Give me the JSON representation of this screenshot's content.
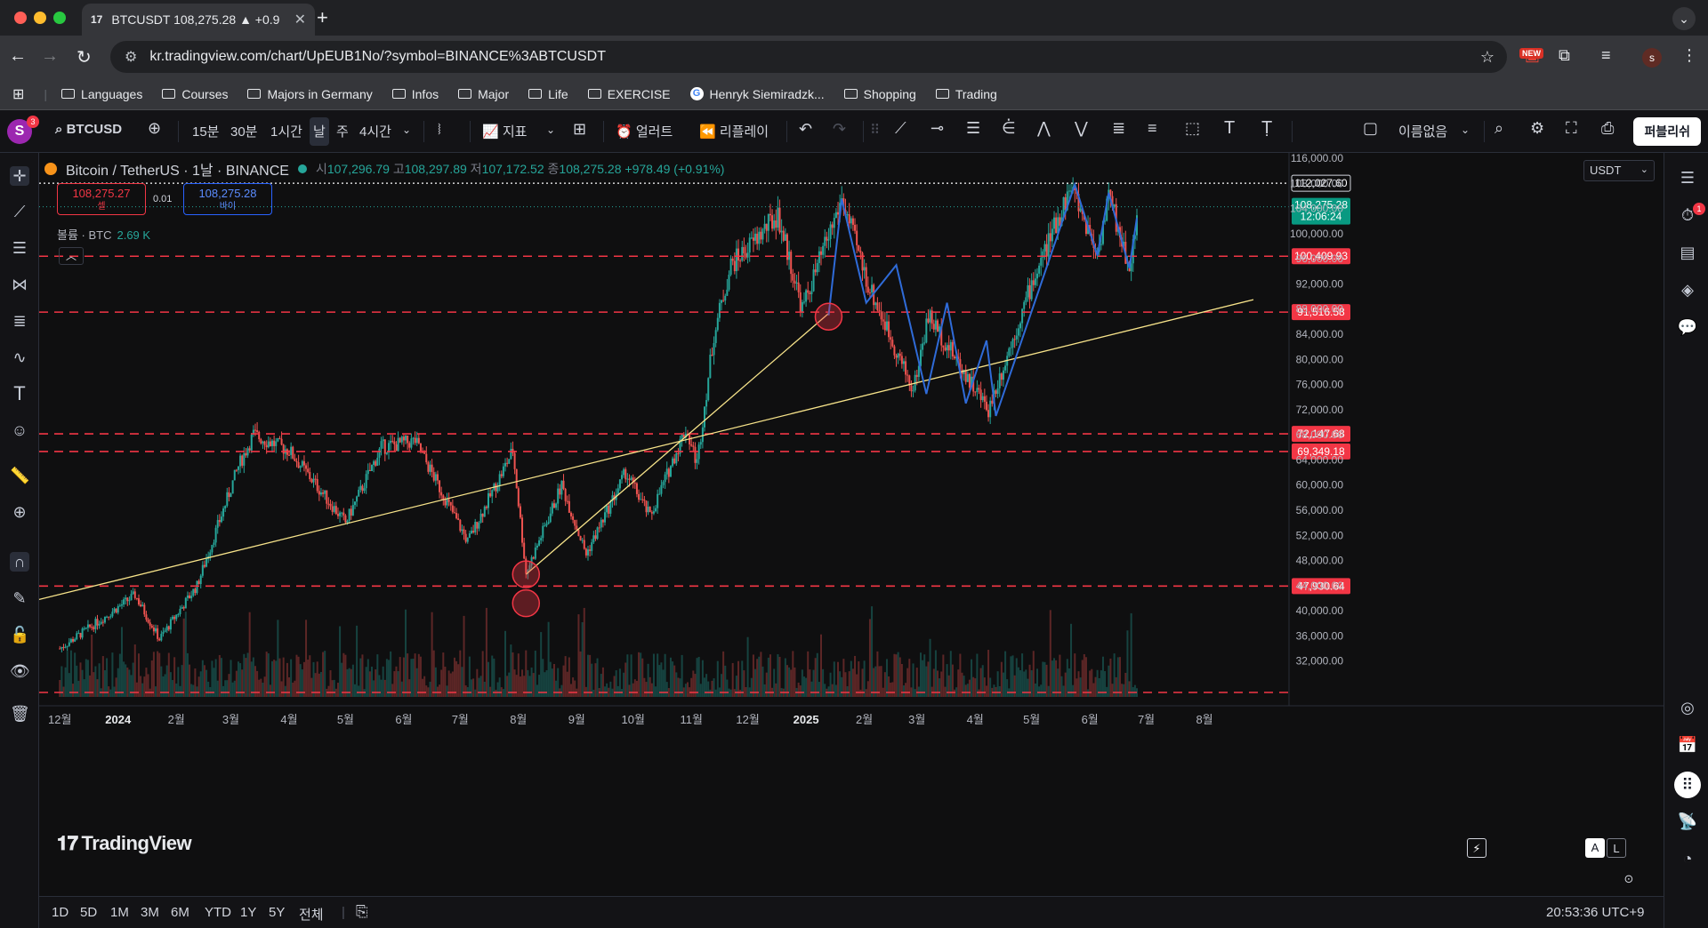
{
  "browser": {
    "tab_title": "BTCUSDT 108,275.28 ▲ +0.9",
    "tab_icon": "17",
    "url": "kr.tradingview.com/chart/UpEUB1No/?symbol=BINANCE%3ABTCUSDT",
    "new_badge": "NEW",
    "profile_initial": "s",
    "bookmarks": [
      "Languages",
      "Courses",
      "Majors in Germany",
      "Infos",
      "Major",
      "Life",
      "EXERCISE",
      "Henryk Siemiradzk...",
      "Shopping",
      "Trading"
    ]
  },
  "toolbar": {
    "avatar": "S",
    "avatar_badge": "3",
    "symbol": "BTCUSD",
    "intervals": [
      "15분",
      "30분",
      "1시간",
      "날",
      "주",
      "4시간"
    ],
    "indicators": "지표",
    "alert": "얼러트",
    "replay": "리플레이",
    "layout_name": "이름없음",
    "publish": "퍼블리쉬"
  },
  "chart": {
    "title": "Bitcoin / TetherUS · 1날 · BINANCE",
    "ohlc": {
      "o_label": "시",
      "o": "107,296.79",
      "h_label": "고",
      "h": "108,297.89",
      "l_label": "저",
      "l": "107,172.52",
      "c_label": "종",
      "c": "108,275.28",
      "change": "+978.49 (+0.91%)"
    },
    "sell_price": "108,275.27",
    "sell_label": "셀",
    "buy_price": "108,275.28",
    "buy_label": "바이",
    "spread": "0.01",
    "volume_label": "볼륨 · BTC",
    "volume_value": "2.69 K",
    "currency": "USDT",
    "watermark": "TradingView",
    "alert_badge": "1",
    "price_axis": [
      "116,000.00",
      "108,000.00",
      "104,000.00",
      "100,000.00",
      "96,000.00",
      "92,000.00",
      "88,000.00",
      "84,000.00",
      "80,000.00",
      "76,000.00",
      "72,000.00",
      "68,000.00",
      "64,000.00",
      "60,000.00",
      "56,000.00",
      "52,000.00",
      "48,000.00",
      "44,000.00",
      "40,000.00",
      "36,000.00",
      "32,000.00"
    ],
    "time_axis": [
      "12월",
      "2024",
      "2월",
      "3월",
      "4월",
      "5월",
      "6월",
      "7월",
      "8월",
      "9월",
      "10월",
      "11월",
      "12월",
      "2025",
      "2월",
      "3월",
      "4월",
      "5월",
      "6월",
      "7월",
      "8월"
    ],
    "level_labels": [
      {
        "text": "112,027.60",
        "kind": "dotted"
      },
      {
        "text": "100,409.93",
        "kind": "red"
      },
      {
        "text": "91,516.58",
        "kind": "red"
      },
      {
        "text": "72,147.68",
        "kind": "red"
      },
      {
        "text": "69,349.18",
        "kind": "red"
      },
      {
        "text": "47,930.64",
        "kind": "red"
      }
    ],
    "current_price": "108,275.28",
    "countdown": "12:06:24",
    "scale_a": "A",
    "scale_l": "L"
  },
  "chart_data": {
    "type": "candlestick",
    "title": "Bitcoin / TetherUS · 1날 · BINANCE",
    "interval": "1D",
    "y_axis": {
      "min": 32000,
      "max": 116000,
      "scale": "linear",
      "unit": "USDT"
    },
    "x_axis": {
      "start": "2023-12",
      "end": "2025-08"
    },
    "close_path": [
      {
        "date": "2023-12-01",
        "close": 38000
      },
      {
        "date": "2023-12-20",
        "close": 42000
      },
      {
        "date": "2024-01-10",
        "close": 46500
      },
      {
        "date": "2024-01-23",
        "close": 39500
      },
      {
        "date": "2024-02-12",
        "close": 48000
      },
      {
        "date": "2024-03-05",
        "close": 67000
      },
      {
        "date": "2024-03-13",
        "close": 72000
      },
      {
        "date": "2024-04-01",
        "close": 69500
      },
      {
        "date": "2024-04-18",
        "close": 63000
      },
      {
        "date": "2024-05-01",
        "close": 58000
      },
      {
        "date": "2024-05-20",
        "close": 70000
      },
      {
        "date": "2024-06-07",
        "close": 71000
      },
      {
        "date": "2024-07-05",
        "close": 55000
      },
      {
        "date": "2024-07-29",
        "close": 69500
      },
      {
        "date": "2024-08-05",
        "close": 50000
      },
      {
        "date": "2024-08-24",
        "close": 64000
      },
      {
        "date": "2024-09-06",
        "close": 53000
      },
      {
        "date": "2024-09-27",
        "close": 66000
      },
      {
        "date": "2024-10-10",
        "close": 59000
      },
      {
        "date": "2024-10-29",
        "close": 73000
      },
      {
        "date": "2024-11-04",
        "close": 67500
      },
      {
        "date": "2024-11-13",
        "close": 88000
      },
      {
        "date": "2024-11-22",
        "close": 99000
      },
      {
        "date": "2024-12-05",
        "close": 103000
      },
      {
        "date": "2024-12-17",
        "close": 107000
      },
      {
        "date": "2024-12-30",
        "close": 92000
      },
      {
        "date": "2025-01-20",
        "close": 109500
      },
      {
        "date": "2025-02-03",
        "close": 96000
      },
      {
        "date": "2025-02-27",
        "close": 79000
      },
      {
        "date": "2025-03-07",
        "close": 91000
      },
      {
        "date": "2025-04-08",
        "close": 76000
      },
      {
        "date": "2025-05-01",
        "close": 96000
      },
      {
        "date": "2025-05-22",
        "close": 111500
      },
      {
        "date": "2025-06-05",
        "close": 101000
      },
      {
        "date": "2025-06-11",
        "close": 110000
      },
      {
        "date": "2025-06-22",
        "close": 98500
      },
      {
        "date": "2025-06-27",
        "close": 108275.28
      }
    ],
    "horizontal_levels": [
      112027.6,
      100409.93,
      91516.58,
      72147.68,
      69349.18,
      47930.64
    ],
    "volume_label": "볼륨 · BTC",
    "volume_last": "2.69 K"
  },
  "timenav": {
    "ranges": [
      "1D",
      "5D",
      "1M",
      "3M",
      "6M",
      "YTD",
      "1Y",
      "5Y",
      "전체"
    ],
    "clock": "20:53:36 UTC+9"
  },
  "colors": {
    "up": "#26a69a",
    "down": "#ef5350",
    "level": "#f23645",
    "trendline": "#f7e38a",
    "zigzag": "#2f6bd8",
    "marker": "#f23645"
  }
}
